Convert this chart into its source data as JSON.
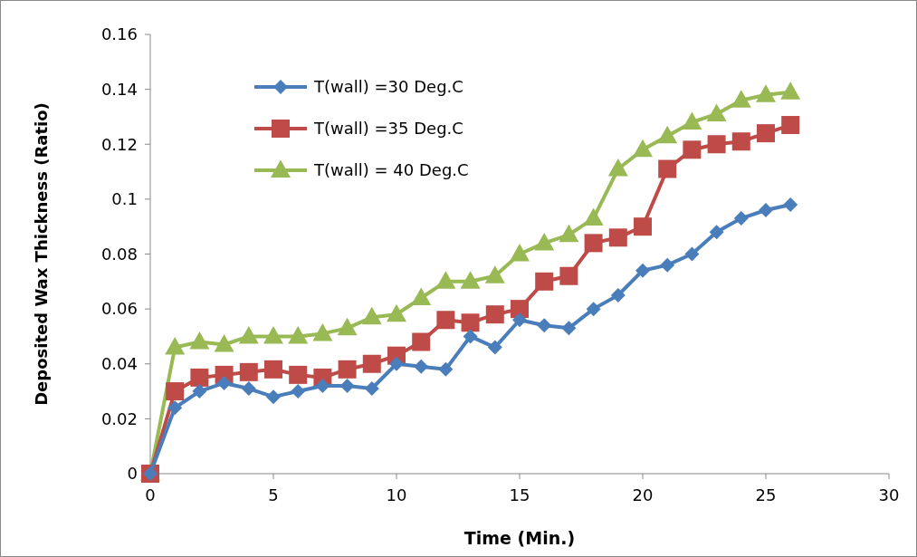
{
  "chart_data": {
    "type": "line",
    "xlabel": "Time (Min.)",
    "ylabel": "Deposited Wax Thickness (Ratio)",
    "x": [
      0,
      1,
      2,
      3,
      4,
      5,
      6,
      7,
      8,
      9,
      10,
      11,
      12,
      13,
      14,
      15,
      16,
      17,
      18,
      19,
      20,
      21,
      22,
      23,
      24,
      25,
      26
    ],
    "series": [
      {
        "name": "T(wall) =30 Deg.C",
        "color": "#4a7ebb",
        "marker": "diamond",
        "values": [
          0,
          0.024,
          0.03,
          0.033,
          0.031,
          0.028,
          0.03,
          0.032,
          0.032,
          0.031,
          0.04,
          0.039,
          0.038,
          0.05,
          0.046,
          0.056,
          0.054,
          0.053,
          0.06,
          0.065,
          0.074,
          0.076,
          0.08,
          0.088,
          0.093,
          0.096,
          0.098
        ]
      },
      {
        "name": "T(wall) =35 Deg.C",
        "color": "#be4b48",
        "marker": "square",
        "values": [
          0,
          0.03,
          0.035,
          0.036,
          0.037,
          0.038,
          0.036,
          0.035,
          0.038,
          0.04,
          0.043,
          0.048,
          0.056,
          0.055,
          0.058,
          0.06,
          0.07,
          0.072,
          0.084,
          0.086,
          0.09,
          0.111,
          0.118,
          0.12,
          0.121,
          0.124,
          0.127
        ]
      },
      {
        "name": "T(wall) = 40 Deg.C",
        "color": "#98b954",
        "marker": "triangle",
        "values": [
          0,
          0.046,
          0.048,
          0.047,
          0.05,
          0.05,
          0.05,
          0.051,
          0.053,
          0.057,
          0.058,
          0.064,
          0.07,
          0.07,
          0.072,
          0.08,
          0.084,
          0.087,
          0.093,
          0.111,
          0.118,
          0.123,
          0.128,
          0.131,
          0.136,
          0.138,
          0.139
        ]
      }
    ],
    "xlim": [
      0,
      30
    ],
    "xticks": [
      0,
      5,
      10,
      15,
      20,
      25,
      30
    ],
    "ylim": [
      0,
      0.16
    ],
    "yticks": [
      0,
      0.02,
      0.04,
      0.06,
      0.08,
      0.1,
      0.12,
      0.14,
      0.16
    ],
    "grid": false,
    "legend": "top left",
    "line_style": "solid"
  }
}
